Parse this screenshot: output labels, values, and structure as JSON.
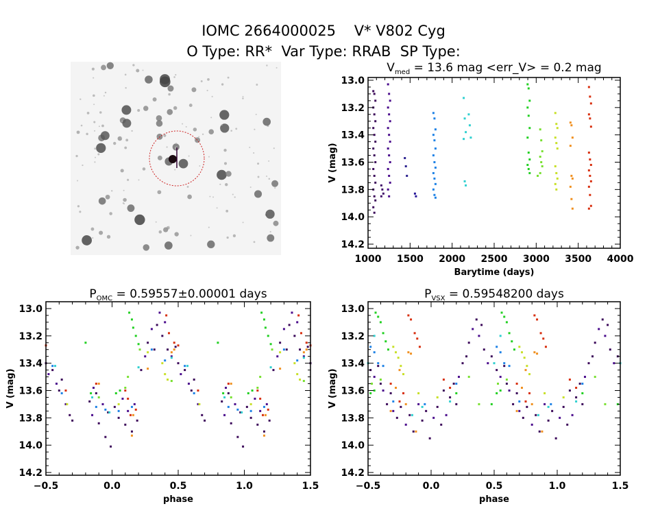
{
  "header": {
    "title": "IOMC 2664000025    V* V802 Cyg",
    "subtitle": "O Type: RR*  Var Type: RRAB  SP Type:"
  },
  "colors": {
    "seasons": [
      "#3c0a5a",
      "#40106a",
      "#4a0c8c",
      "#2a208e",
      "#2a1a9a",
      "#1e82e6",
      "#30d0d0",
      "#22d022",
      "#78e030",
      "#c8e028",
      "#f09020",
      "#d83010"
    ],
    "finder_circle": "#cc2020"
  },
  "chart_data": [
    {
      "type": "scatter",
      "title": {
        "prefix": "V",
        "sub": "med",
        "suffix": " = 13.6 mag <err_V> = 0.2 mag"
      },
      "xlabel": "Barytime (days)",
      "ylabel": "V (mag)",
      "xlim": [
        1000,
        4000
      ],
      "ylim": [
        12.98,
        14.23
      ],
      "y_inverted": true,
      "xticks": [
        "1000",
        "1500",
        "2000",
        "2500",
        "3000",
        "3500",
        "4000"
      ],
      "yticks": [
        "13.0",
        "13.2",
        "13.4",
        "13.6",
        "13.8",
        "14.0",
        "14.2"
      ],
      "seasons": [
        {
          "season": 0,
          "t": 1075,
          "mags": [
            13.08,
            13.1,
            13.15,
            13.2,
            13.25,
            13.3,
            13.35,
            13.4,
            13.45,
            13.5,
            13.55,
            13.6,
            13.65,
            13.7,
            13.75,
            13.8,
            13.85,
            13.88,
            13.93,
            13.97
          ]
        },
        {
          "season": 1,
          "t": 1170,
          "mags": [
            13.77,
            13.8,
            13.83,
            13.85
          ]
        },
        {
          "season": 2,
          "t": 1250,
          "mags": [
            13.03,
            13.1,
            13.15,
            13.2,
            13.25,
            13.3,
            13.35,
            13.4,
            13.45,
            13.5,
            13.55,
            13.6,
            13.65,
            13.7,
            13.75,
            13.8,
            13.85
          ]
        },
        {
          "season": 3,
          "t": 1450,
          "mags": [
            13.57,
            13.63,
            13.7
          ]
        },
        {
          "season": 4,
          "t": 1570,
          "mags": [
            13.83,
            13.85
          ]
        },
        {
          "season": 5,
          "t": 1790,
          "mags": [
            13.24,
            13.28,
            13.36,
            13.4,
            13.44,
            13.5,
            13.55,
            13.6,
            13.64,
            13.68,
            13.72,
            13.76,
            13.8,
            13.84,
            13.86
          ]
        },
        {
          "season": 6,
          "t": 2150,
          "mags": [
            13.13,
            13.28,
            13.38,
            13.43,
            13.74,
            13.77
          ]
        },
        {
          "season": 6,
          "t": 2210,
          "mags": [
            13.25,
            13.33,
            13.42
          ]
        },
        {
          "season": 7,
          "t": 2910,
          "mags": [
            13.03,
            13.06,
            13.15,
            13.2,
            13.26,
            13.35,
            13.42,
            13.53,
            13.58,
            13.62,
            13.65,
            13.68
          ]
        },
        {
          "season": 8,
          "t": 3030,
          "mags": [
            13.7
          ]
        },
        {
          "season": 8,
          "t": 3060,
          "mags": [
            13.36,
            13.44,
            13.52,
            13.56,
            13.6,
            13.63,
            13.68
          ]
        },
        {
          "season": 9,
          "t": 3240,
          "mags": [
            13.24,
            13.32,
            13.35,
            13.42,
            13.46,
            13.5,
            13.63,
            13.68,
            13.72,
            13.76,
            13.8
          ]
        },
        {
          "season": 10,
          "t": 3420,
          "mags": [
            13.31,
            13.33,
            13.42,
            13.48,
            13.7,
            13.72,
            13.78,
            13.87,
            13.94
          ]
        },
        {
          "season": 11,
          "t": 3640,
          "mags": [
            13.05,
            13.12,
            13.17,
            13.25,
            13.28,
            13.34,
            13.53,
            13.58,
            13.62,
            13.66,
            13.7,
            13.74,
            13.78,
            13.84,
            13.92,
            13.94
          ]
        }
      ]
    },
    {
      "type": "scatter",
      "title": {
        "prefix": "P",
        "sub": "OMC",
        "suffix": " = 0.59557±0.00001 days"
      },
      "xlabel": "phase",
      "ylabel": "V (mag)",
      "xlim": [
        -0.5,
        1.5
      ],
      "ylim": [
        12.95,
        14.22
      ],
      "y_inverted": true,
      "phase_repeated": true,
      "xticks": [
        "-0.5",
        "0.0",
        "0.5",
        "1.0",
        "1.5"
      ],
      "yticks": [
        "13.0",
        "13.2",
        "13.4",
        "13.6",
        "13.8",
        "14.0",
        "14.2"
      ],
      "points": [
        [
          0.02,
          13.72,
          0
        ],
        [
          0.05,
          13.8,
          0
        ],
        [
          0.08,
          13.66,
          2
        ],
        [
          0.1,
          13.85,
          0
        ],
        [
          0.12,
          13.75,
          2
        ],
        [
          0.15,
          13.9,
          0
        ],
        [
          0.17,
          13.7,
          2
        ],
        [
          0.19,
          13.82,
          0
        ],
        [
          0.22,
          13.45,
          0
        ],
        [
          0.25,
          13.35,
          2
        ],
        [
          0.27,
          13.25,
          0
        ],
        [
          0.3,
          13.15,
          2
        ],
        [
          0.32,
          13.3,
          0
        ],
        [
          0.34,
          13.12,
          0
        ],
        [
          0.36,
          13.03,
          2
        ],
        [
          0.38,
          13.2,
          0
        ],
        [
          0.4,
          13.1,
          2
        ],
        [
          0.42,
          13.3,
          0
        ],
        [
          0.45,
          13.35,
          2
        ],
        [
          0.48,
          13.28,
          0
        ],
        [
          0.5,
          13.4,
          0
        ],
        [
          0.52,
          13.48,
          2
        ],
        [
          0.55,
          13.45,
          0
        ],
        [
          0.58,
          13.55,
          2
        ],
        [
          0.6,
          13.6,
          0
        ],
        [
          0.62,
          13.52,
          0
        ],
        [
          0.65,
          13.7,
          2
        ],
        [
          0.68,
          13.78,
          0
        ],
        [
          0.7,
          13.82,
          0
        ],
        [
          0.83,
          13.68,
          0
        ],
        [
          0.85,
          13.78,
          2
        ],
        [
          0.88,
          13.62,
          0
        ],
        [
          0.9,
          13.84,
          0
        ],
        [
          0.93,
          13.7,
          2
        ],
        [
          0.95,
          13.94,
          0
        ],
        [
          0.97,
          13.76,
          0
        ],
        [
          0.99,
          14.01,
          0
        ],
        [
          0.86,
          13.58,
          2
        ],
        [
          0.3,
          13.3,
          5
        ],
        [
          0.4,
          13.38,
          5
        ],
        [
          0.55,
          13.42,
          5
        ],
        [
          0.62,
          13.62,
          5
        ],
        [
          0.88,
          13.72,
          5
        ],
        [
          0.95,
          13.74,
          5
        ],
        [
          0.05,
          13.75,
          5
        ],
        [
          0.15,
          13.72,
          5
        ],
        [
          0.45,
          13.36,
          6
        ],
        [
          0.57,
          13.42,
          6
        ],
        [
          0.2,
          13.43,
          6
        ],
        [
          0.98,
          13.76,
          6
        ],
        [
          0.85,
          13.65,
          6
        ],
        [
          0.13,
          13.03,
          7
        ],
        [
          0.15,
          13.08,
          7
        ],
        [
          0.16,
          13.14,
          7
        ],
        [
          0.18,
          13.2,
          7
        ],
        [
          0.2,
          13.26,
          7
        ],
        [
          0.03,
          13.62,
          7
        ],
        [
          0.06,
          13.6,
          7
        ],
        [
          0.84,
          13.62,
          7
        ],
        [
          0.8,
          13.25,
          7
        ],
        [
          0.21,
          13.3,
          8
        ],
        [
          0.12,
          13.5,
          8
        ],
        [
          0.1,
          13.58,
          8
        ],
        [
          0.9,
          13.65,
          8
        ],
        [
          0.45,
          13.53,
          8
        ],
        [
          0.38,
          13.4,
          9
        ],
        [
          0.4,
          13.48,
          9
        ],
        [
          0.42,
          13.52,
          9
        ],
        [
          0.27,
          13.32,
          9
        ],
        [
          0.66,
          13.7,
          9
        ],
        [
          0.05,
          13.7,
          9
        ],
        [
          0.45,
          13.32,
          10
        ],
        [
          0.47,
          13.3,
          10
        ],
        [
          0.27,
          13.44,
          10
        ],
        [
          0.15,
          13.93,
          10
        ],
        [
          0.16,
          13.78,
          10
        ],
        [
          0.9,
          13.55,
          10
        ],
        [
          0.41,
          13.05,
          11
        ],
        [
          0.43,
          13.18,
          11
        ],
        [
          0.47,
          13.25,
          11
        ],
        [
          0.5,
          13.27,
          11
        ],
        [
          0.12,
          13.66,
          11
        ],
        [
          0.14,
          13.78,
          11
        ],
        [
          0.18,
          13.74,
          11
        ],
        [
          0.1,
          13.6,
          11
        ],
        [
          0.65,
          13.6,
          11
        ],
        [
          0.88,
          13.55,
          11
        ]
      ]
    },
    {
      "type": "scatter",
      "title": {
        "prefix": "P",
        "sub": "VSX",
        "suffix": " = 0.59548200 days"
      },
      "xlabel": "phase",
      "ylabel": "V (mag)",
      "xlim": [
        -0.5,
        1.5
      ],
      "ylim": [
        12.95,
        14.22
      ],
      "y_inverted": true,
      "phase_repeated": true,
      "xticks": [
        "-0.5",
        "0.0",
        "0.5",
        "1.0",
        "1.5"
      ],
      "yticks": [
        "13.0",
        "13.2",
        "13.4",
        "13.6",
        "13.8",
        "14.0",
        "14.2"
      ],
      "points": [
        [
          0.3,
          13.25,
          0
        ],
        [
          0.33,
          13.15,
          2
        ],
        [
          0.36,
          13.08,
          0
        ],
        [
          0.38,
          13.2,
          2
        ],
        [
          0.4,
          13.12,
          0
        ],
        [
          0.42,
          13.3,
          0
        ],
        [
          0.45,
          13.4,
          2
        ],
        [
          0.48,
          13.35,
          0
        ],
        [
          0.52,
          13.45,
          0
        ],
        [
          0.55,
          13.5,
          2
        ],
        [
          0.58,
          13.42,
          0
        ],
        [
          0.6,
          13.55,
          0
        ],
        [
          0.62,
          13.6,
          2
        ],
        [
          0.65,
          13.7,
          0
        ],
        [
          0.68,
          13.62,
          0
        ],
        [
          0.7,
          13.75,
          2
        ],
        [
          0.73,
          13.8,
          0
        ],
        [
          0.76,
          13.72,
          0
        ],
        [
          0.8,
          13.85,
          2
        ],
        [
          0.83,
          13.78,
          0
        ],
        [
          0.86,
          13.9,
          0
        ],
        [
          0.9,
          13.7,
          2
        ],
        [
          0.93,
          13.82,
          0
        ],
        [
          0.96,
          13.75,
          0
        ],
        [
          0.99,
          13.95,
          0
        ],
        [
          0.02,
          13.8,
          2
        ],
        [
          0.05,
          13.72,
          0
        ],
        [
          0.08,
          13.85,
          0
        ],
        [
          0.12,
          13.78,
          2
        ],
        [
          0.15,
          13.65,
          0
        ],
        [
          0.18,
          13.55,
          0
        ],
        [
          0.22,
          13.5,
          2
        ],
        [
          0.25,
          13.4,
          0
        ],
        [
          0.28,
          13.35,
          0
        ],
        [
          0.2,
          13.7,
          0
        ],
        [
          0.1,
          13.6,
          0
        ],
        [
          0.52,
          13.28,
          5
        ],
        [
          0.55,
          13.32,
          5
        ],
        [
          0.58,
          13.4,
          5
        ],
        [
          0.62,
          13.42,
          5
        ],
        [
          0.7,
          13.68,
          5
        ],
        [
          0.95,
          13.7,
          5
        ],
        [
          0.2,
          13.55,
          5
        ],
        [
          0.55,
          13.2,
          6
        ],
        [
          0.5,
          13.4,
          6
        ],
        [
          0.85,
          13.78,
          6
        ],
        [
          0.93,
          13.72,
          6
        ],
        [
          0.15,
          13.68,
          6
        ],
        [
          0.56,
          13.03,
          7
        ],
        [
          0.58,
          13.06,
          7
        ],
        [
          0.6,
          13.1,
          7
        ],
        [
          0.62,
          13.18,
          7
        ],
        [
          0.64,
          13.24,
          7
        ],
        [
          0.66,
          13.3,
          7
        ],
        [
          0.48,
          13.7,
          7
        ],
        [
          0.52,
          13.62,
          7
        ],
        [
          0.2,
          13.62,
          7
        ],
        [
          0.55,
          13.6,
          7
        ],
        [
          0.53,
          13.55,
          8
        ],
        [
          0.6,
          13.52,
          8
        ],
        [
          0.3,
          13.5,
          8
        ],
        [
          0.38,
          13.7,
          8
        ],
        [
          0.7,
          13.28,
          9
        ],
        [
          0.72,
          13.32,
          9
        ],
        [
          0.74,
          13.36,
          9
        ],
        [
          0.76,
          13.42,
          9
        ],
        [
          0.78,
          13.48,
          9
        ],
        [
          0.9,
          13.62,
          9
        ],
        [
          0.05,
          13.65,
          9
        ],
        [
          0.82,
          13.32,
          10
        ],
        [
          0.84,
          13.33,
          10
        ],
        [
          0.75,
          13.45,
          10
        ],
        [
          0.72,
          13.58,
          10
        ],
        [
          0.8,
          13.7,
          10
        ],
        [
          0.88,
          13.9,
          10
        ],
        [
          0.68,
          13.75,
          10
        ],
        [
          0.82,
          13.05,
          11
        ],
        [
          0.84,
          13.08,
          11
        ],
        [
          0.87,
          13.18,
          11
        ],
        [
          0.89,
          13.22,
          11
        ],
        [
          0.91,
          13.28,
          11
        ],
        [
          0.75,
          13.68,
          11
        ],
        [
          0.78,
          13.62,
          11
        ],
        [
          0.68,
          13.55,
          11
        ],
        [
          0.1,
          13.52,
          11
        ],
        [
          0.15,
          13.58,
          11
        ]
      ]
    }
  ]
}
